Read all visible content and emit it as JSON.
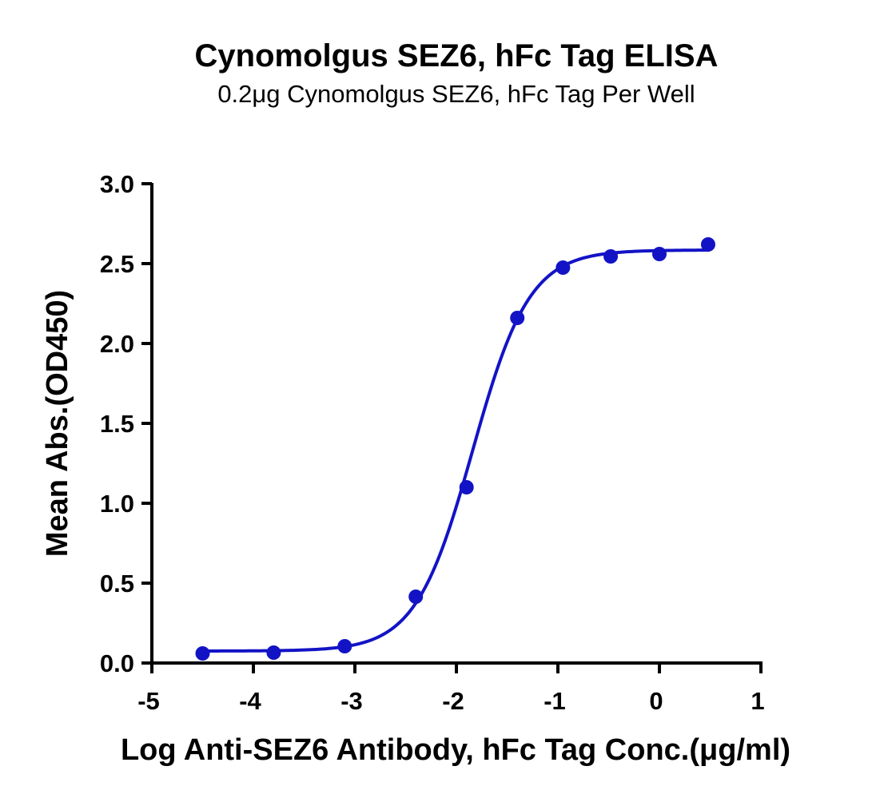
{
  "chart_data": {
    "type": "scatter",
    "title": "Cynomolgus SEZ6, hFc Tag ELISA",
    "subtitle": "0.2μg Cynomolgus SEZ6, hFc Tag Per Well",
    "xlabel": "Log Anti-SEZ6 Antibody, hFc Tag Conc.(μg/ml)",
    "ylabel": "Mean Abs.(OD450)",
    "xlim": [
      -5,
      1
    ],
    "ylim": [
      0,
      3.0
    ],
    "x_ticks": [
      -5,
      -4,
      -3,
      -2,
      -1,
      0,
      1
    ],
    "x_tick_labels": [
      "-5",
      "-4",
      "-3",
      "-2",
      "-1",
      "0",
      "1"
    ],
    "y_ticks": [
      0,
      0.5,
      1.0,
      1.5,
      2.0,
      2.5,
      3.0
    ],
    "y_tick_labels": [
      "0.0",
      "0.5",
      "1.0",
      "1.5",
      "2.0",
      "2.5",
      "3.0"
    ],
    "grid": false,
    "legend": "none",
    "color": "#1313c6",
    "series": [
      {
        "x": [
          -4.5,
          -3.8,
          -3.1,
          -2.4,
          -1.9,
          -1.4,
          -0.95,
          -0.48,
          0.0,
          0.48
        ],
        "y": [
          0.06,
          0.065,
          0.105,
          0.415,
          1.1,
          2.16,
          2.475,
          2.545,
          2.56,
          2.62
        ]
      }
    ],
    "fit_curve": {
      "model": "4PL",
      "bottom": 0.075,
      "top": 2.585,
      "log_ec50": -1.84,
      "hill_slope": 1.55,
      "x_range": [
        -4.5,
        0.48
      ]
    }
  }
}
